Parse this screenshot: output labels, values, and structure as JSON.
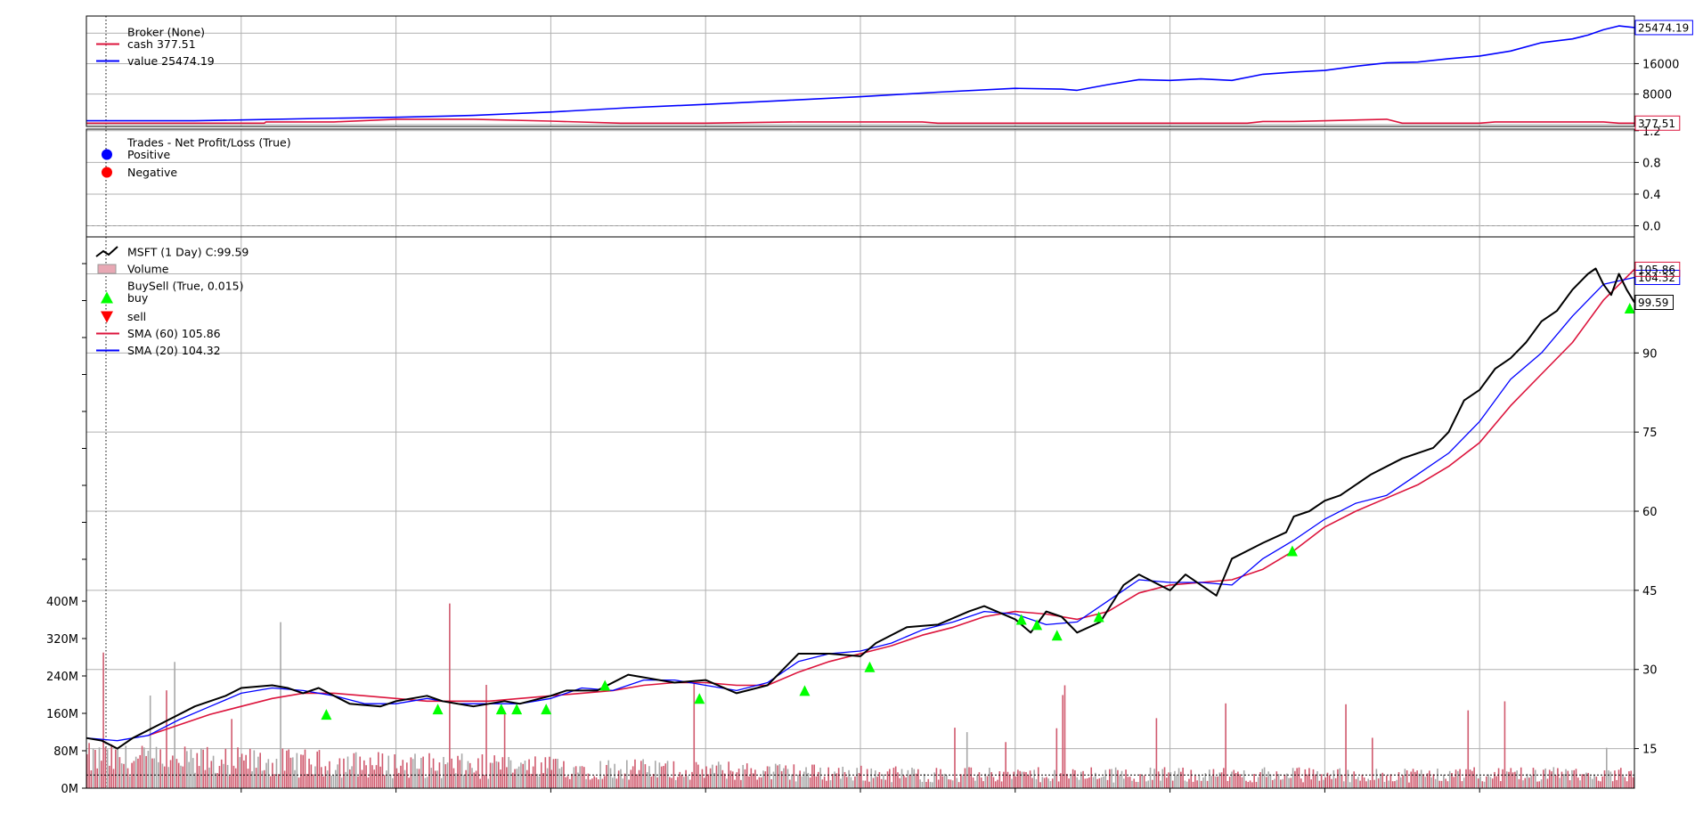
{
  "chart_data": [
    {
      "panel": "broker",
      "type": "line",
      "legend": [
        {
          "label": "Broker (None)",
          "color": "#dc143c"
        },
        {
          "label": "cash 377.51",
          "color": "#dc143c"
        },
        {
          "label": "value 25474.19",
          "color": "#0000ff"
        }
      ],
      "yticks": [
        "8000",
        "16000"
      ],
      "ylim": [
        -500,
        28500
      ],
      "tags": {
        "value": "25474.19",
        "cash": "377.51"
      },
      "series": [
        {
          "name": "value",
          "color": "#0000ff",
          "x": [
            0,
            0.07,
            0.1,
            0.15,
            0.2,
            0.25,
            0.3,
            0.35,
            0.4,
            0.45,
            0.5,
            0.55,
            0.6,
            0.63,
            0.64,
            0.66,
            0.68,
            0.7,
            0.72,
            0.74,
            0.76,
            0.78,
            0.8,
            0.82,
            0.84,
            0.86,
            0.88,
            0.9,
            0.92,
            0.94,
            0.96,
            0.97,
            0.98,
            0.99,
            1.0
          ],
          "y": [
            1000,
            1000,
            1200,
            1600,
            1900,
            2400,
            3300,
            4400,
            5300,
            6300,
            7300,
            8500,
            9500,
            9300,
            9000,
            10500,
            11800,
            11600,
            12000,
            11600,
            13200,
            13800,
            14200,
            15300,
            16200,
            16400,
            17300,
            18000,
            19300,
            21500,
            22500,
            23500,
            24900,
            25900,
            25474
          ]
        },
        {
          "name": "cash",
          "color": "#dc143c",
          "x": [
            0,
            0.115,
            0.116,
            0.16,
            0.2,
            0.25,
            0.3,
            0.345,
            0.4,
            0.46,
            0.54,
            0.55,
            0.6,
            0.68,
            0.75,
            0.76,
            0.78,
            0.84,
            0.85,
            0.9,
            0.91,
            0.98,
            0.99,
            1.0
          ],
          "y": [
            377,
            377,
            700,
            700,
            1400,
            1400,
            900,
            377,
            377,
            700,
            700,
            377,
            377,
            377,
            377,
            800,
            800,
            1400,
            377,
            377,
            700,
            700,
            377,
            377
          ]
        }
      ]
    },
    {
      "panel": "trades",
      "type": "scatter",
      "legend": [
        {
          "label": "Trades - Net Profit/Loss (True)",
          "color": "#0000ff"
        },
        {
          "label": "Positive",
          "color": "#0000ff"
        },
        {
          "label": "Negative",
          "color": "#ff0000"
        }
      ],
      "yticks": [
        "0.0",
        "0.4",
        "0.8",
        "1.2"
      ],
      "ylim": [
        -0.14,
        1.22
      ],
      "series": []
    },
    {
      "panel": "price",
      "type": "line",
      "legend": [
        {
          "label": "MSFT (1 Day) C:99.59",
          "color": "#000000"
        },
        {
          "label": "Volume",
          "color": "#dc143c"
        },
        {
          "label": "BuySell (True, 0.015)",
          "color": "#00ff00"
        },
        {
          "label": "buy",
          "color": "#00ff00"
        },
        {
          "label": "sell",
          "color": "#ff0000"
        },
        {
          "label": "SMA (60) 105.86",
          "color": "#dc143c"
        },
        {
          "label": "SMA (20) 104.32",
          "color": "#0000ff"
        }
      ],
      "yticks": [
        "15",
        "30",
        "45",
        "60",
        "75",
        "90"
      ],
      "ylim": [
        7.5,
        112
      ],
      "volume_yticks": [
        "0M",
        "80M",
        "160M",
        "240M",
        "320M",
        "400M"
      ],
      "volume_ylim": [
        0,
        400
      ],
      "tags": {
        "sma60": "105.86",
        "sma20": "104.32",
        "close": "99.59"
      },
      "dashed_level": 10,
      "series": [
        {
          "name": "MSFT close",
          "color": "#000000",
          "x": [
            0,
            0.01,
            0.02,
            0.03,
            0.05,
            0.07,
            0.09,
            0.1,
            0.12,
            0.13,
            0.14,
            0.15,
            0.17,
            0.19,
            0.2,
            0.22,
            0.23,
            0.25,
            0.27,
            0.28,
            0.3,
            0.31,
            0.33,
            0.35,
            0.37,
            0.38,
            0.4,
            0.42,
            0.44,
            0.46,
            0.48,
            0.5,
            0.51,
            0.53,
            0.55,
            0.57,
            0.58,
            0.6,
            0.61,
            0.62,
            0.63,
            0.64,
            0.655,
            0.67,
            0.68,
            0.7,
            0.71,
            0.73,
            0.74,
            0.76,
            0.775,
            0.78,
            0.79,
            0.8,
            0.81,
            0.83,
            0.85,
            0.87,
            0.88,
            0.89,
            0.9,
            0.91,
            0.92,
            0.93,
            0.94,
            0.95,
            0.96,
            0.97,
            0.975,
            0.98,
            0.985,
            0.99,
            0.995,
            1.0
          ],
          "y": [
            17,
            16.5,
            15,
            17,
            20,
            23,
            25,
            26.5,
            27,
            26.5,
            25.5,
            26.5,
            23.5,
            23,
            24,
            25,
            24,
            23,
            24,
            23.5,
            25,
            26,
            26,
            29,
            28,
            27.5,
            28,
            25.5,
            27,
            33,
            33,
            32.5,
            35,
            38,
            38.5,
            41,
            42,
            39.5,
            37,
            41,
            40,
            37,
            39,
            46,
            48,
            45,
            48,
            44,
            51,
            54,
            56,
            59,
            60,
            62,
            63,
            67,
            70,
            72,
            75,
            81,
            83,
            87,
            89,
            92,
            96,
            98,
            102,
            105,
            106,
            103,
            101,
            105,
            102,
            99.59
          ]
        },
        {
          "name": "SMA (20)",
          "color": "#0000ff",
          "x": [
            0,
            0.02,
            0.04,
            0.06,
            0.08,
            0.1,
            0.12,
            0.14,
            0.16,
            0.18,
            0.2,
            0.22,
            0.24,
            0.26,
            0.28,
            0.3,
            0.32,
            0.34,
            0.36,
            0.38,
            0.4,
            0.42,
            0.44,
            0.46,
            0.48,
            0.5,
            0.52,
            0.54,
            0.56,
            0.58,
            0.6,
            0.62,
            0.64,
            0.66,
            0.68,
            0.7,
            0.72,
            0.74,
            0.76,
            0.78,
            0.8,
            0.82,
            0.84,
            0.86,
            0.88,
            0.9,
            0.92,
            0.94,
            0.96,
            0.98,
            1.0
          ],
          "y": [
            17,
            16.5,
            17.5,
            20.5,
            23,
            25.5,
            26.5,
            26,
            25,
            23.5,
            23.5,
            24.5,
            23.5,
            23.5,
            23.5,
            24.5,
            26.5,
            26,
            28,
            28,
            27,
            26,
            27.5,
            31.5,
            33,
            33.5,
            35,
            37.5,
            39,
            41,
            40.5,
            38.5,
            39,
            43,
            47,
            46.5,
            46.5,
            46,
            51,
            54.5,
            58.5,
            61.5,
            63,
            67,
            71,
            77,
            85,
            90,
            97,
            103,
            104.32
          ]
        },
        {
          "name": "SMA (60)",
          "color": "#dc143c",
          "x": [
            0.04,
            0.06,
            0.08,
            0.1,
            0.12,
            0.14,
            0.16,
            0.18,
            0.2,
            0.22,
            0.24,
            0.26,
            0.28,
            0.3,
            0.32,
            0.34,
            0.36,
            0.38,
            0.4,
            0.42,
            0.44,
            0.46,
            0.48,
            0.5,
            0.52,
            0.54,
            0.56,
            0.58,
            0.6,
            0.62,
            0.64,
            0.66,
            0.68,
            0.7,
            0.72,
            0.74,
            0.76,
            0.78,
            0.8,
            0.82,
            0.84,
            0.86,
            0.88,
            0.9,
            0.92,
            0.94,
            0.96,
            0.98,
            1.0
          ],
          "y": [
            17.5,
            19.5,
            21.5,
            23,
            24.5,
            25.5,
            25.5,
            25,
            24.5,
            24,
            24,
            24,
            24.5,
            25,
            25.5,
            26,
            27,
            27.5,
            27.5,
            27,
            27,
            29.5,
            31.5,
            33,
            34.5,
            36.5,
            38,
            40,
            41,
            40.5,
            39.5,
            41,
            44.5,
            46,
            46.5,
            47,
            49,
            52.5,
            57,
            60,
            62.5,
            65,
            68.5,
            73,
            80,
            86,
            92,
            100,
            105.86
          ]
        },
        {
          "name": "buy",
          "type": "marker",
          "color": "#00ff00",
          "x": [
            0.155,
            0.227,
            0.268,
            0.278,
            0.297,
            0.335,
            0.396,
            0.464,
            0.506,
            0.604,
            0.614,
            0.627,
            0.654,
            0.779,
            0.997
          ],
          "y": [
            21.5,
            22.5,
            22.5,
            22.5,
            22.5,
            27,
            24.5,
            26,
            30.5,
            39.5,
            38.5,
            36.5,
            40,
            52.5,
            98.5
          ]
        }
      ]
    }
  ]
}
